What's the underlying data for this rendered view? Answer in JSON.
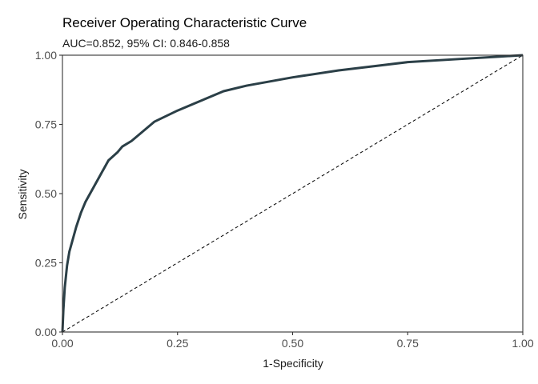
{
  "chart_data": {
    "type": "line",
    "title": "Receiver Operating Characteristic Curve",
    "subtitle": "AUC=0.852, 95% CI: 0.846-0.858",
    "xlabel": "1-Specificity",
    "ylabel": "Sensitivity",
    "xlim": [
      0,
      1
    ],
    "ylim": [
      0,
      1
    ],
    "x_ticks": [
      "0.00",
      "0.25",
      "0.50",
      "0.75",
      "1.00"
    ],
    "y_ticks": [
      "0.00",
      "0.25",
      "0.50",
      "0.75",
      "1.00"
    ],
    "grid": false,
    "series": [
      {
        "color": "#2b3f47",
        "x": [
          0,
          0.002,
          0.005,
          0.01,
          0.015,
          0.02,
          0.03,
          0.04,
          0.05,
          0.06,
          0.07,
          0.08,
          0.09,
          0.1,
          0.12,
          0.13,
          0.15,
          0.2,
          0.25,
          0.3,
          0.35,
          0.4,
          0.5,
          0.6,
          0.7,
          0.75,
          0.85,
          0.95,
          1.0
        ],
        "y": [
          0,
          0.08,
          0.16,
          0.24,
          0.29,
          0.32,
          0.38,
          0.43,
          0.47,
          0.5,
          0.53,
          0.56,
          0.59,
          0.62,
          0.65,
          0.67,
          0.69,
          0.76,
          0.8,
          0.835,
          0.87,
          0.89,
          0.92,
          0.945,
          0.965,
          0.975,
          0.985,
          0.995,
          1.0
        ]
      },
      {
        "color": "#000000",
        "dashed": true,
        "x": [
          0,
          1
        ],
        "y": [
          0,
          1
        ]
      }
    ]
  }
}
